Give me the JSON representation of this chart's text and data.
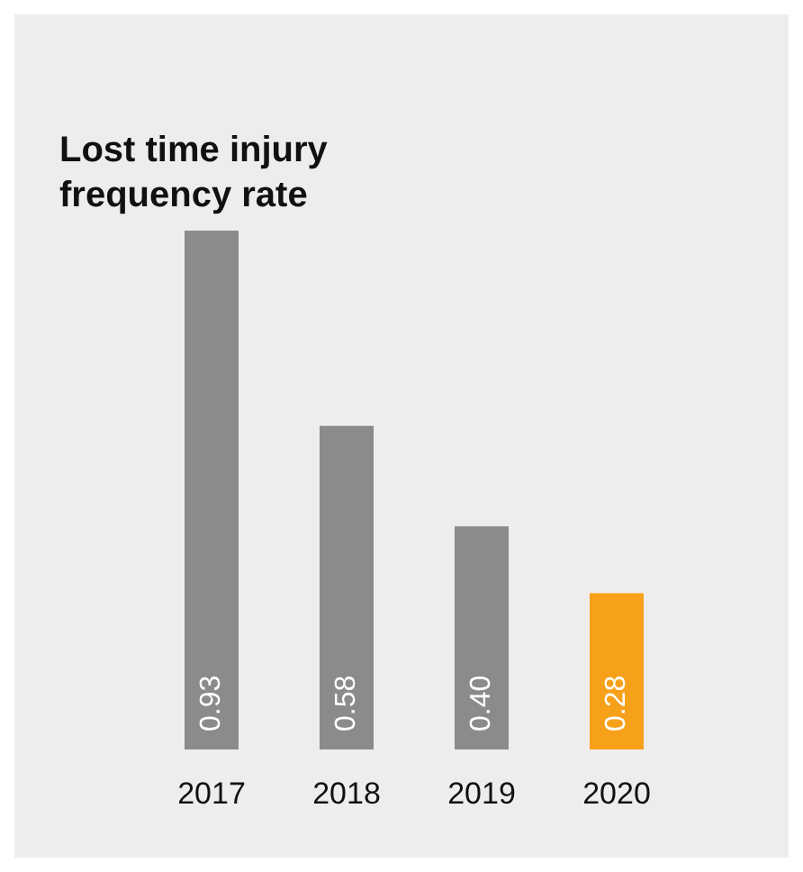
{
  "chart_data": {
    "type": "bar",
    "title": "Lost time injury\nfrequency rate",
    "categories": [
      "2017",
      "2018",
      "2019",
      "2020"
    ],
    "values": [
      0.93,
      0.58,
      0.4,
      0.28
    ],
    "colors": [
      "#8a8b8d",
      "#8a8b8d",
      "#8a8b8d",
      "#f7a11a"
    ],
    "value_labels": [
      "0.93",
      "0.58",
      "0.40",
      "0.28"
    ]
  }
}
